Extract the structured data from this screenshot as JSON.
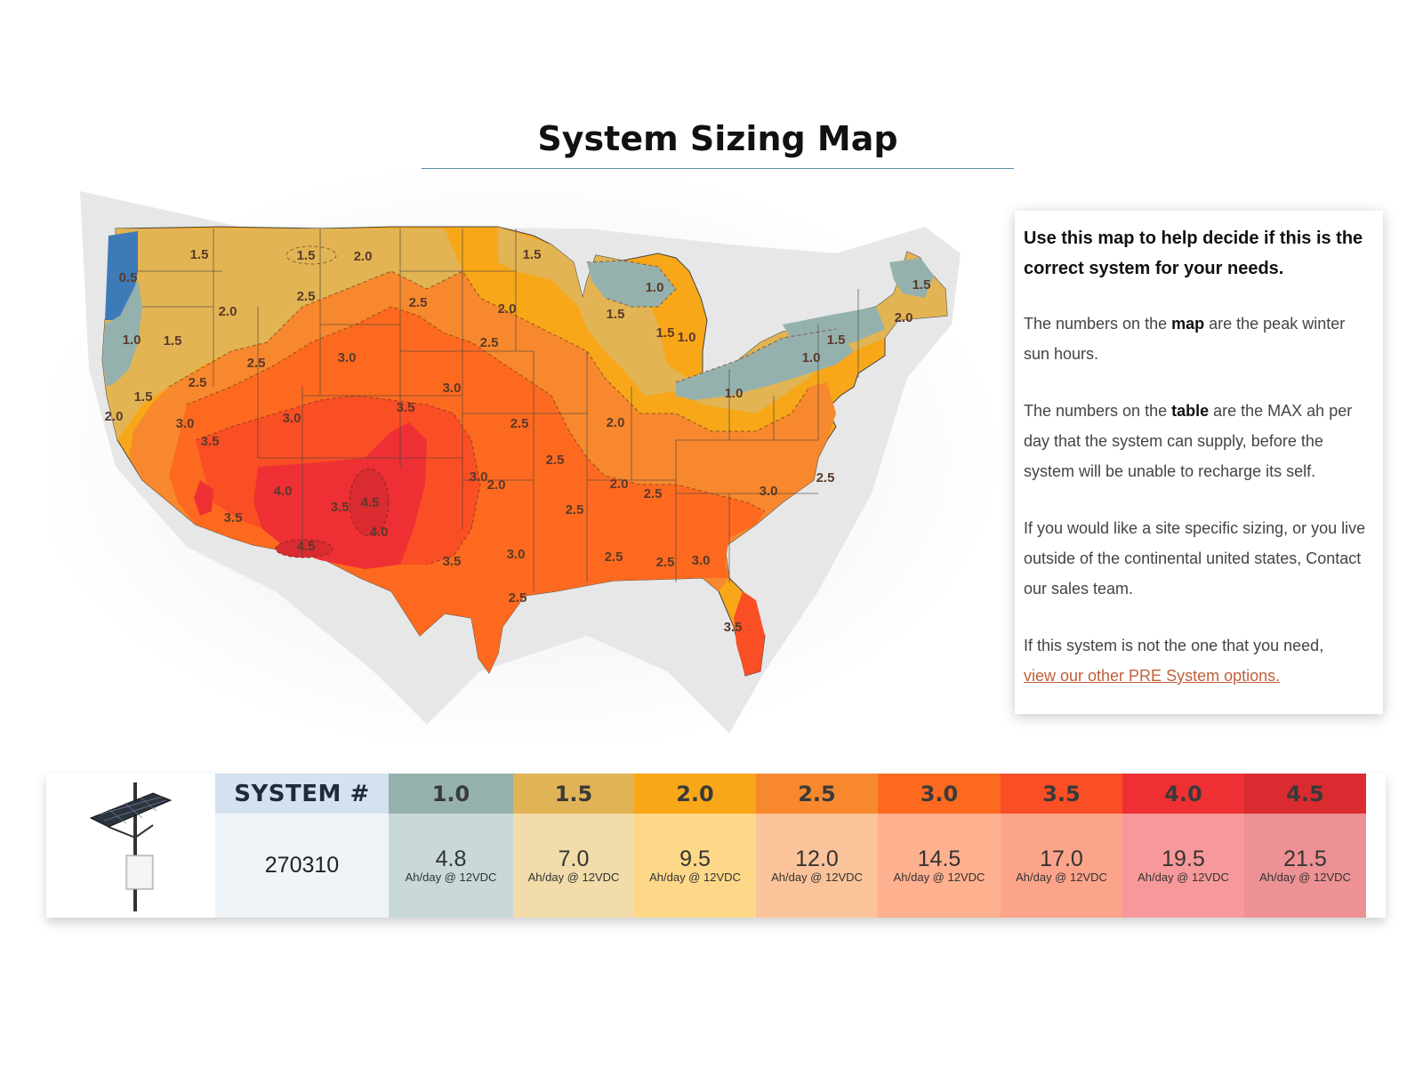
{
  "page": {
    "title": "System Sizing Map"
  },
  "info": {
    "heading": "Use this map to help decide if this is the correct system for your needs.",
    "p1_before": "The numbers on the ",
    "p1_bold": "map",
    "p1_after": " are the peak winter sun hours.",
    "p2_before": "The numbers on the ",
    "p2_bold": "table",
    "p2_after": " are the MAX ah per day that the system can supply, before the system will be unable to recharge its self.",
    "p3": "If you would like a site specific sizing, or you live outside of the continental united states, Contact our sales team.",
    "p4": "If this system is not the one that you need,",
    "link": "view our other PRE System options."
  },
  "map": {
    "labels": [
      "0.5",
      "1.0",
      "1.5",
      "1.5",
      "2.0",
      "2.0",
      "2.5",
      "2.5",
      "3.0",
      "2.5",
      "2.0",
      "1.5",
      "1.5",
      "2.5",
      "3.0",
      "3.0",
      "3.5",
      "2.0",
      "3.0",
      "3.5",
      "4.0",
      "3.5",
      "4.5",
      "4.0",
      "4.5",
      "3.5",
      "3.0",
      "2.5",
      "2.5",
      "2.5",
      "3.0",
      "3.5",
      "2.0",
      "2.5",
      "1.5",
      "1.0",
      "1.0",
      "1.0",
      "1.0",
      "1.5",
      "1.5",
      "1.5",
      "2.0",
      "2.0",
      "2.5",
      "2.5",
      "2.5",
      "3.0",
      "2.5",
      "3.0",
      "3.5",
      "2.5",
      "1.5",
      "2.0"
    ]
  },
  "table": {
    "system_header": "SYSTEM #",
    "system_number": "270310",
    "unit_label": "Ah/day @ 12VDC",
    "columns": [
      {
        "sun_hours": "1.0",
        "ah": "4.8",
        "header_color": "#95b1ae",
        "body_color": "#c8d9d8"
      },
      {
        "sun_hours": "1.5",
        "ah": "7.0",
        "header_color": "#e0b456",
        "body_color": "#f1dcaa"
      },
      {
        "sun_hours": "2.0",
        "ah": "9.5",
        "header_color": "#f8a718",
        "body_color": "#fdd888"
      },
      {
        "sun_hours": "2.5",
        "ah": "12.0",
        "header_color": "#f7882d",
        "body_color": "#fbc39a"
      },
      {
        "sun_hours": "3.0",
        "ah": "14.5",
        "header_color": "#fd6a1f",
        "body_color": "#ffb08f"
      },
      {
        "sun_hours": "3.5",
        "ah": "17.0",
        "header_color": "#fa4e24",
        "body_color": "#fca48a"
      },
      {
        "sun_hours": "4.0",
        "ah": "19.5",
        "header_color": "#ee3034",
        "body_color": "#f7999a"
      },
      {
        "sun_hours": "4.5",
        "ah": "21.5",
        "header_color": "#d92b30",
        "body_color": "#ed9194"
      }
    ]
  }
}
